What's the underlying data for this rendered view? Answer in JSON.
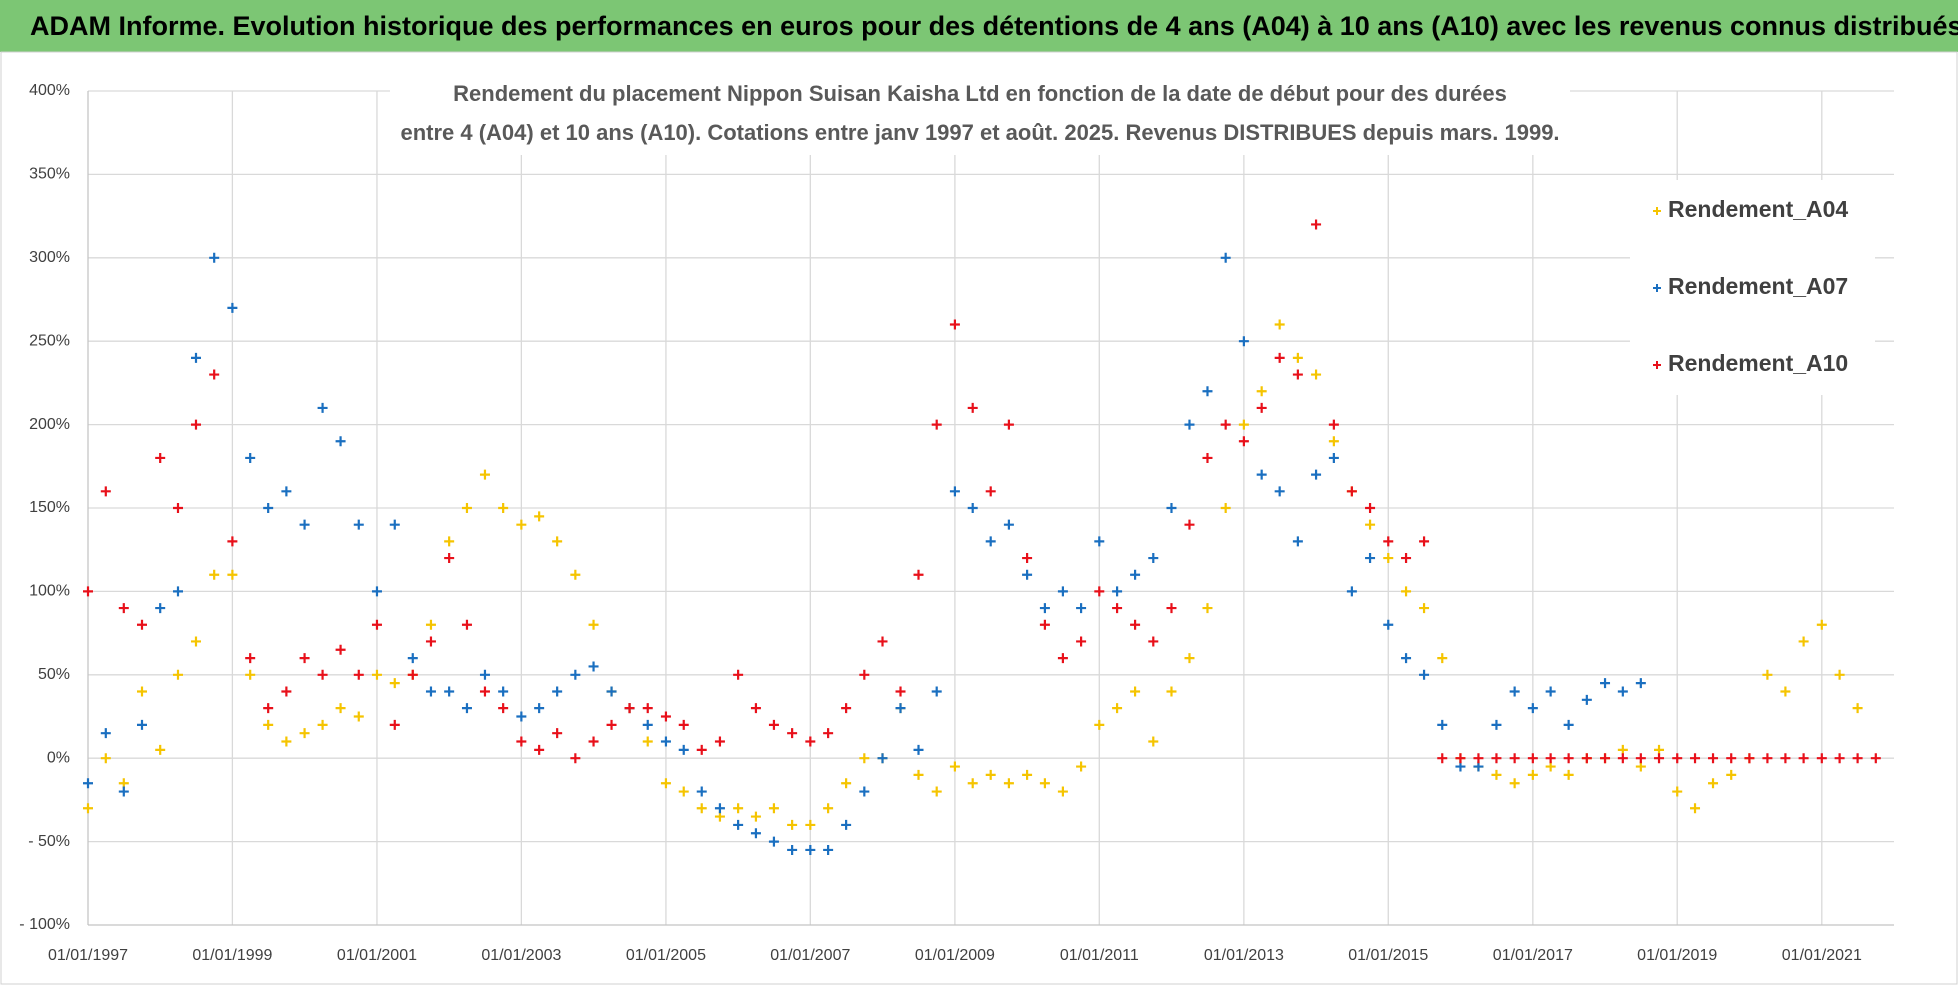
{
  "chart_data": {
    "type": "scatter",
    "header": "ADAM Informe. Evolution historique des performances en euros pour des détentions de 4 ans (A04) à 10 ans (A10) avec les revenus connus distribués",
    "title": [
      "Rendement du placement Nippon Suisan Kaisha Ltd en fonction de la date de début pour des durées",
      "entre 4 (A04) et 10 ans (A10). Cotations entre janv 1997 et août. 2025. Revenus DISTRIBUES depuis mars. 1999."
    ],
    "x": [
      "1997-01-01",
      "1997-04-01",
      "1997-07-01",
      "1997-10-01",
      "1998-01-01",
      "1998-04-01",
      "1998-07-01",
      "1998-10-01",
      "1999-01-01",
      "1999-04-01",
      "1999-07-01",
      "1999-10-01",
      "2000-01-01",
      "2000-04-01",
      "2000-07-01",
      "2000-10-01",
      "2001-01-01",
      "2001-04-01",
      "2001-07-01",
      "2001-10-01",
      "2002-01-01",
      "2002-04-01",
      "2002-07-01",
      "2002-10-01",
      "2003-01-01",
      "2003-04-01",
      "2003-07-01",
      "2003-10-01",
      "2004-01-01",
      "2004-04-01",
      "2004-07-01",
      "2004-10-01",
      "2005-01-01",
      "2005-04-01",
      "2005-07-01",
      "2005-10-01",
      "2006-01-01",
      "2006-04-01",
      "2006-07-01",
      "2006-10-01",
      "2007-01-01",
      "2007-04-01",
      "2007-07-01",
      "2007-10-01",
      "2008-01-01",
      "2008-04-01",
      "2008-07-01",
      "2008-10-01",
      "2009-01-01",
      "2009-04-01",
      "2009-07-01",
      "2009-10-01",
      "2010-01-01",
      "2010-04-01",
      "2010-07-01",
      "2010-10-01",
      "2011-01-01",
      "2011-04-01",
      "2011-07-01",
      "2011-10-01",
      "2012-01-01",
      "2012-04-01",
      "2012-07-01",
      "2012-10-01",
      "2013-01-01",
      "2013-04-01",
      "2013-07-01",
      "2013-10-01",
      "2014-01-01",
      "2014-04-01",
      "2014-07-01",
      "2014-10-01",
      "2015-01-01",
      "2015-04-01",
      "2015-07-01",
      "2015-10-01",
      "2016-01-01",
      "2016-04-01",
      "2016-07-01",
      "2016-10-01",
      "2017-01-01",
      "2017-04-01",
      "2017-07-01",
      "2017-10-01",
      "2018-01-01",
      "2018-04-01",
      "2018-07-01",
      "2018-10-01",
      "2019-01-01",
      "2019-04-01",
      "2019-07-01",
      "2019-10-01",
      "2020-01-01",
      "2020-04-01",
      "2020-07-01",
      "2020-10-01",
      "2021-01-01",
      "2021-04-01",
      "2021-07-01",
      "2021-10-01"
    ],
    "series": [
      {
        "name": "Rendement_A04",
        "color": "#f5c400",
        "values": [
          -30,
          0,
          -15,
          40,
          5,
          50,
          70,
          110,
          110,
          50,
          20,
          10,
          15,
          20,
          30,
          25,
          50,
          45,
          50,
          80,
          130,
          150,
          170,
          150,
          140,
          145,
          130,
          110,
          80,
          40,
          30,
          10,
          -15,
          -20,
          -30,
          -35,
          -30,
          -35,
          -30,
          -40,
          -40,
          -30,
          -15,
          0,
          0,
          30,
          -10,
          -20,
          -5,
          -15,
          -10,
          -15,
          -10,
          -15,
          -20,
          -5,
          20,
          30,
          40,
          10,
          40,
          60,
          90,
          150,
          200,
          220,
          260,
          240,
          230,
          190,
          160,
          140,
          120,
          100,
          90,
          60,
          0,
          -5,
          -10,
          -15,
          -10,
          -5,
          -10,
          0,
          0,
          5,
          -5,
          5,
          -20,
          -30,
          -15,
          -10,
          0,
          50,
          40,
          70,
          80,
          50,
          30,
          null
        ]
      },
      {
        "name": "Rendement_A07",
        "color": "#1a6fc0",
        "values": [
          -15,
          15,
          -20,
          20,
          90,
          100,
          240,
          300,
          270,
          180,
          150,
          160,
          140,
          210,
          190,
          140,
          100,
          140,
          60,
          40,
          40,
          30,
          50,
          40,
          25,
          30,
          40,
          50,
          55,
          40,
          30,
          20,
          10,
          5,
          -20,
          -30,
          -40,
          -45,
          -50,
          -55,
          -55,
          -55,
          -40,
          -20,
          0,
          30,
          5,
          40,
          160,
          150,
          130,
          140,
          110,
          90,
          100,
          90,
          130,
          100,
          110,
          120,
          150,
          200,
          220,
          300,
          250,
          170,
          160,
          130,
          170,
          180,
          100,
          120,
          80,
          60,
          50,
          20,
          -5,
          -5,
          20,
          40,
          30,
          40,
          20,
          35,
          45,
          40,
          45,
          null,
          null,
          null,
          null,
          null,
          null,
          null,
          null,
          null,
          null,
          null,
          null,
          null
        ]
      },
      {
        "name": "Rendement_A10",
        "color": "#e8101a",
        "values": [
          100,
          160,
          90,
          80,
          180,
          150,
          200,
          230,
          130,
          60,
          30,
          40,
          60,
          50,
          65,
          50,
          80,
          20,
          50,
          70,
          120,
          80,
          40,
          30,
          10,
          5,
          15,
          0,
          10,
          20,
          30,
          30,
          25,
          20,
          5,
          10,
          50,
          30,
          20,
          15,
          10,
          15,
          30,
          50,
          70,
          40,
          110,
          200,
          260,
          210,
          160,
          200,
          120,
          80,
          60,
          70,
          100,
          90,
          80,
          70,
          90,
          140,
          180,
          200,
          190,
          210,
          240,
          230,
          320,
          200,
          160,
          150,
          130,
          120,
          130,
          0,
          0,
          0,
          0,
          0,
          0,
          0,
          0,
          0,
          0,
          0,
          0,
          0,
          0,
          0,
          0,
          0,
          0,
          0,
          0,
          0,
          0,
          0,
          0,
          0
        ]
      }
    ],
    "xlim": [
      "1997-01-01",
      "2022-01-01"
    ],
    "xticks": [
      {
        "value": "1997-01-01",
        "label": "01/01/1997"
      },
      {
        "value": "1999-01-01",
        "label": "01/01/1999"
      },
      {
        "value": "2001-01-01",
        "label": "01/01/2001"
      },
      {
        "value": "2003-01-01",
        "label": "01/01/2003"
      },
      {
        "value": "2005-01-01",
        "label": "01/01/2005"
      },
      {
        "value": "2007-01-01",
        "label": "01/01/2007"
      },
      {
        "value": "2009-01-01",
        "label": "01/01/2009"
      },
      {
        "value": "2011-01-01",
        "label": "01/01/2011"
      },
      {
        "value": "2013-01-01",
        "label": "01/01/2013"
      },
      {
        "value": "2015-01-01",
        "label": "01/01/2015"
      },
      {
        "value": "2017-01-01",
        "label": "01/01/2017"
      },
      {
        "value": "2019-01-01",
        "label": "01/01/2019"
      },
      {
        "value": "2021-01-01",
        "label": "01/01/2021"
      }
    ],
    "ylim": [
      -100,
      400
    ],
    "yticks": [
      {
        "value": -100,
        "label": "- 100%"
      },
      {
        "value": -50,
        "label": "- 50%"
      },
      {
        "value": 0,
        "label": "0%"
      },
      {
        "value": 50,
        "label": "50%"
      },
      {
        "value": 100,
        "label": "100%"
      },
      {
        "value": 150,
        "label": "150%"
      },
      {
        "value": 200,
        "label": "200%"
      },
      {
        "value": 250,
        "label": "250%"
      },
      {
        "value": 300,
        "label": "300%"
      },
      {
        "value": 350,
        "label": "350%"
      },
      {
        "value": 400,
        "label": "400%"
      }
    ],
    "grid": true,
    "legend": "upper right"
  }
}
